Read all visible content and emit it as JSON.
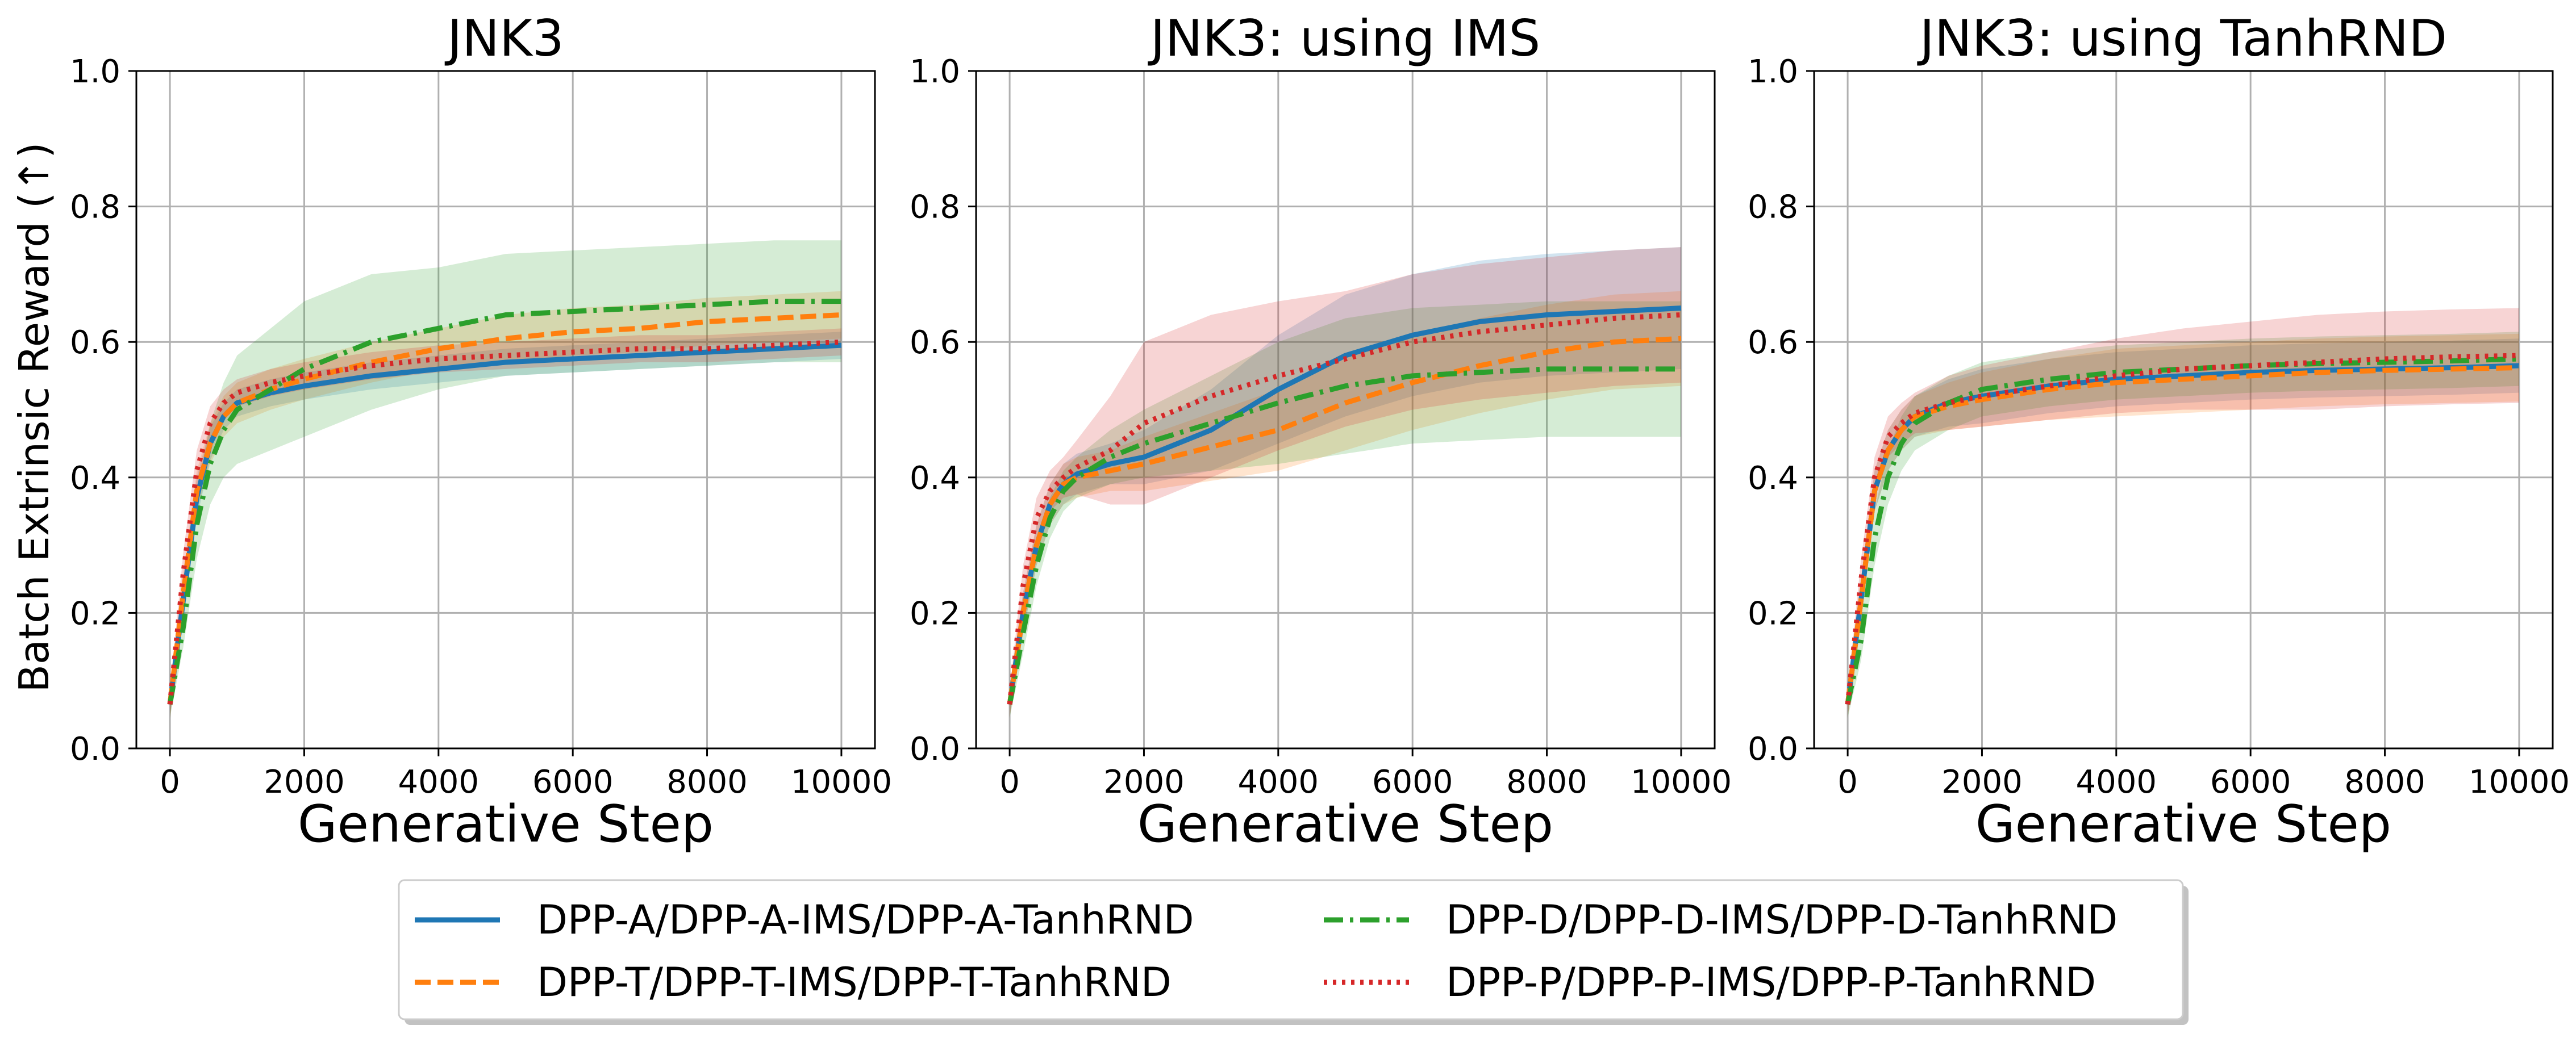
{
  "chart_data": {
    "type": "line",
    "ylabel": "Batch Extrinsic Reward (↑)",
    "xlabel": "Generative Step",
    "xlim": [
      -500,
      10500
    ],
    "ylim": [
      0.0,
      1.0
    ],
    "x_ticks": [
      0,
      2000,
      4000,
      6000,
      8000,
      10000
    ],
    "y_ticks": [
      0.0,
      0.2,
      0.4,
      0.6,
      0.8,
      1.0
    ],
    "x_tick_labels": [
      "0",
      "2000",
      "4000",
      "6000",
      "8000",
      "10000"
    ],
    "y_tick_labels": [
      "0.0",
      "0.2",
      "0.4",
      "0.6",
      "0.8",
      "1.0"
    ],
    "grid": true,
    "legend_position": "bottom-center",
    "x": [
      0,
      200,
      400,
      600,
      800,
      1000,
      1500,
      2000,
      3000,
      4000,
      5000,
      6000,
      7000,
      8000,
      9000,
      10000
    ],
    "series_meta": [
      {
        "key": "A",
        "name": "DPP-A/DPP-A-IMS/DPP-A-TanhRND",
        "color": "#1f77b4",
        "dash": "solid"
      },
      {
        "key": "T",
        "name": "DPP-T/DPP-T-IMS/DPP-T-TanhRND",
        "color": "#ff7f0e",
        "dash": "dashed"
      },
      {
        "key": "D",
        "name": "DPP-D/DPP-D-IMS/DPP-D-TanhRND",
        "color": "#2ca02c",
        "dash": "dashdot"
      },
      {
        "key": "P",
        "name": "DPP-P/DPP-P-IMS/DPP-P-TanhRND",
        "color": "#d62728",
        "dash": "dotted"
      }
    ],
    "panels": [
      {
        "title": "JNK3",
        "series": [
          {
            "key": "A",
            "values": [
              0.065,
              0.22,
              0.37,
              0.45,
              0.49,
              0.51,
              0.525,
              0.535,
              0.55,
              0.56,
              0.57,
              0.575,
              0.58,
              0.585,
              0.59,
              0.595
            ],
            "band": [
              0.02,
              0.03,
              0.03,
              0.025,
              0.02,
              0.02,
              0.02,
              0.02,
              0.02,
              0.02,
              0.02,
              0.02,
              0.02,
              0.02,
              0.02,
              0.02
            ]
          },
          {
            "key": "T",
            "values": [
              0.065,
              0.23,
              0.38,
              0.45,
              0.49,
              0.51,
              0.53,
              0.545,
              0.57,
              0.59,
              0.605,
              0.615,
              0.62,
              0.63,
              0.635,
              0.64
            ],
            "band": [
              0.02,
              0.03,
              0.03,
              0.03,
              0.03,
              0.03,
              0.03,
              0.03,
              0.03,
              0.03,
              0.035,
              0.035,
              0.035,
              0.035,
              0.035,
              0.035
            ]
          },
          {
            "key": "D",
            "values": [
              0.065,
              0.18,
              0.33,
              0.42,
              0.47,
              0.5,
              0.53,
              0.56,
              0.6,
              0.62,
              0.64,
              0.645,
              0.65,
              0.655,
              0.66,
              0.66
            ],
            "band": [
              0.02,
              0.03,
              0.05,
              0.06,
              0.07,
              0.08,
              0.09,
              0.1,
              0.1,
              0.09,
              0.09,
              0.09,
              0.09,
              0.09,
              0.09,
              0.09
            ]
          },
          {
            "key": "P",
            "values": [
              0.065,
              0.26,
              0.41,
              0.48,
              0.51,
              0.525,
              0.54,
              0.55,
              0.565,
              0.575,
              0.58,
              0.585,
              0.59,
              0.59,
              0.595,
              0.6
            ],
            "band": [
              0.02,
              0.03,
              0.03,
              0.025,
              0.02,
              0.02,
              0.02,
              0.02,
              0.02,
              0.02,
              0.02,
              0.02,
              0.02,
              0.02,
              0.02,
              0.02
            ]
          }
        ]
      },
      {
        "title": "JNK3: using IMS",
        "series": [
          {
            "key": "A",
            "values": [
              0.065,
              0.2,
              0.3,
              0.36,
              0.39,
              0.405,
              0.42,
              0.43,
              0.47,
              0.53,
              0.58,
              0.61,
              0.63,
              0.64,
              0.645,
              0.65
            ],
            "band": [
              0.02,
              0.03,
              0.03,
              0.03,
              0.03,
              0.03,
              0.03,
              0.04,
              0.06,
              0.08,
              0.09,
              0.09,
              0.09,
              0.09,
              0.09,
              0.09
            ]
          },
          {
            "key": "T",
            "values": [
              0.065,
              0.2,
              0.3,
              0.36,
              0.39,
              0.4,
              0.41,
              0.42,
              0.445,
              0.47,
              0.51,
              0.54,
              0.565,
              0.585,
              0.6,
              0.605
            ],
            "band": [
              0.02,
              0.03,
              0.03,
              0.03,
              0.03,
              0.03,
              0.03,
              0.04,
              0.05,
              0.06,
              0.07,
              0.07,
              0.07,
              0.07,
              0.07,
              0.07
            ]
          },
          {
            "key": "D",
            "values": [
              0.065,
              0.17,
              0.27,
              0.34,
              0.38,
              0.4,
              0.43,
              0.45,
              0.48,
              0.51,
              0.535,
              0.55,
              0.555,
              0.56,
              0.56,
              0.56
            ],
            "band": [
              0.02,
              0.03,
              0.03,
              0.03,
              0.03,
              0.03,
              0.04,
              0.05,
              0.07,
              0.09,
              0.1,
              0.1,
              0.1,
              0.1,
              0.1,
              0.1
            ]
          },
          {
            "key": "P",
            "values": [
              0.065,
              0.24,
              0.34,
              0.38,
              0.4,
              0.415,
              0.44,
              0.48,
              0.52,
              0.55,
              0.575,
              0.6,
              0.615,
              0.625,
              0.635,
              0.64
            ],
            "band": [
              0.02,
              0.03,
              0.03,
              0.03,
              0.03,
              0.04,
              0.08,
              0.12,
              0.12,
              0.11,
              0.1,
              0.1,
              0.1,
              0.1,
              0.1,
              0.1
            ]
          }
        ]
      },
      {
        "title": "JNK3: using TanhRND",
        "series": [
          {
            "key": "A",
            "values": [
              0.065,
              0.22,
              0.38,
              0.44,
              0.47,
              0.49,
              0.51,
              0.52,
              0.535,
              0.545,
              0.55,
              0.555,
              0.558,
              0.56,
              0.562,
              0.565
            ],
            "band": [
              0.02,
              0.03,
              0.03,
              0.03,
              0.03,
              0.03,
              0.035,
              0.04,
              0.04,
              0.04,
              0.04,
              0.04,
              0.04,
              0.04,
              0.04,
              0.04
            ]
          },
          {
            "key": "T",
            "values": [
              0.065,
              0.22,
              0.38,
              0.44,
              0.47,
              0.49,
              0.505,
              0.515,
              0.53,
              0.54,
              0.545,
              0.55,
              0.555,
              0.558,
              0.56,
              0.562
            ],
            "band": [
              0.02,
              0.03,
              0.03,
              0.03,
              0.03,
              0.03,
              0.035,
              0.04,
              0.045,
              0.05,
              0.05,
              0.05,
              0.05,
              0.05,
              0.05,
              0.05
            ]
          },
          {
            "key": "D",
            "values": [
              0.065,
              0.16,
              0.31,
              0.4,
              0.45,
              0.48,
              0.51,
              0.53,
              0.545,
              0.555,
              0.56,
              0.565,
              0.568,
              0.57,
              0.572,
              0.575
            ],
            "band": [
              0.02,
              0.03,
              0.04,
              0.04,
              0.04,
              0.04,
              0.04,
              0.04,
              0.04,
              0.04,
              0.04,
              0.04,
              0.04,
              0.04,
              0.04,
              0.04
            ]
          },
          {
            "key": "P",
            "values": [
              0.065,
              0.25,
              0.4,
              0.46,
              0.48,
              0.495,
              0.51,
              0.52,
              0.535,
              0.55,
              0.56,
              0.565,
              0.57,
              0.575,
              0.578,
              0.58
            ],
            "band": [
              0.02,
              0.03,
              0.03,
              0.03,
              0.03,
              0.03,
              0.04,
              0.045,
              0.05,
              0.055,
              0.06,
              0.065,
              0.07,
              0.07,
              0.07,
              0.07
            ]
          }
        ]
      }
    ]
  }
}
